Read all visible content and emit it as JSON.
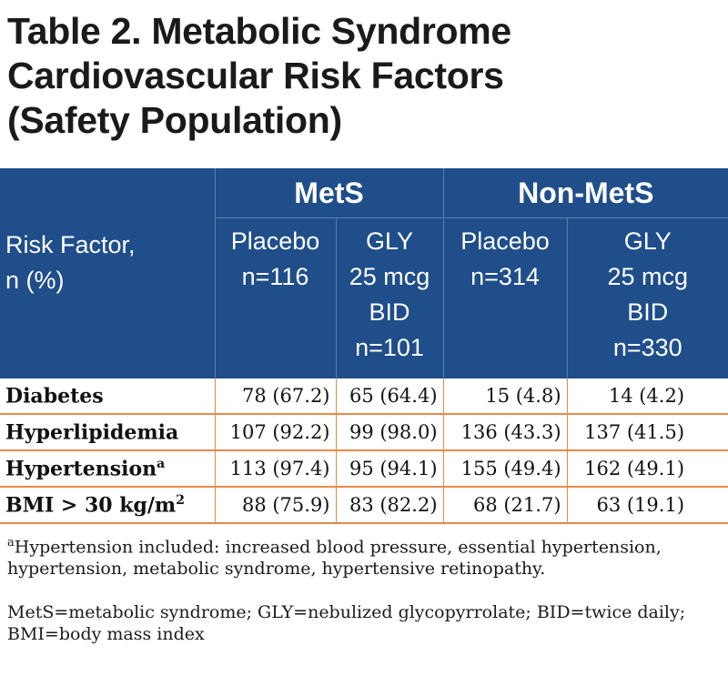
{
  "title": {
    "line1": "Table 2. Metabolic Syndrome",
    "line2": "Cardiovascular Risk Factors",
    "line3": "(Safety Population)"
  },
  "table": {
    "groups": [
      "MetS",
      "Non-MetS"
    ],
    "risk_header": [
      "Risk Factor,",
      "n (%)"
    ],
    "columns": [
      [
        "Placebo",
        "n=116"
      ],
      [
        "GLY",
        "25 mcg",
        "BID",
        "n=101"
      ],
      [
        "Placebo",
        "n=314"
      ],
      [
        "GLY",
        "25 mcg",
        "BID",
        "n=330"
      ]
    ],
    "rows": [
      {
        "name": "Diabetes",
        "sup": "",
        "values": [
          "78 (67.2)",
          "65 (64.4)",
          "15 (4.8)",
          "14 (4.2)"
        ]
      },
      {
        "name": "Hyperlipidemia",
        "sup": "",
        "values": [
          "107 (92.2)",
          "99 (98.0)",
          "136 (43.3)",
          "137 (41.5)"
        ]
      },
      {
        "name": "Hypertension",
        "sup": "a",
        "values": [
          "113 (97.4)",
          "95 (94.1)",
          "155 (49.4)",
          "162 (49.1)"
        ]
      },
      {
        "name": "BMI > 30 kg/m",
        "sup": "2",
        "values": [
          "88 (75.9)",
          "83 (82.2)",
          "68 (21.7)",
          "63 (19.1)"
        ]
      }
    ]
  },
  "footnotes": {
    "note_a_marker": "a",
    "note_a": "Hypertension included: increased blood pressure, essential hypertension, hypertension, metabolic syndrome, hypertensive retinopathy.",
    "abbrev": "MetS=metabolic syndrome; GLY=nebulized glycopyrrolate; BID=twice daily; BMI=body mass index"
  },
  "colors": {
    "header_bg": "#1f4e8a",
    "row_rule": "#e8894a"
  }
}
